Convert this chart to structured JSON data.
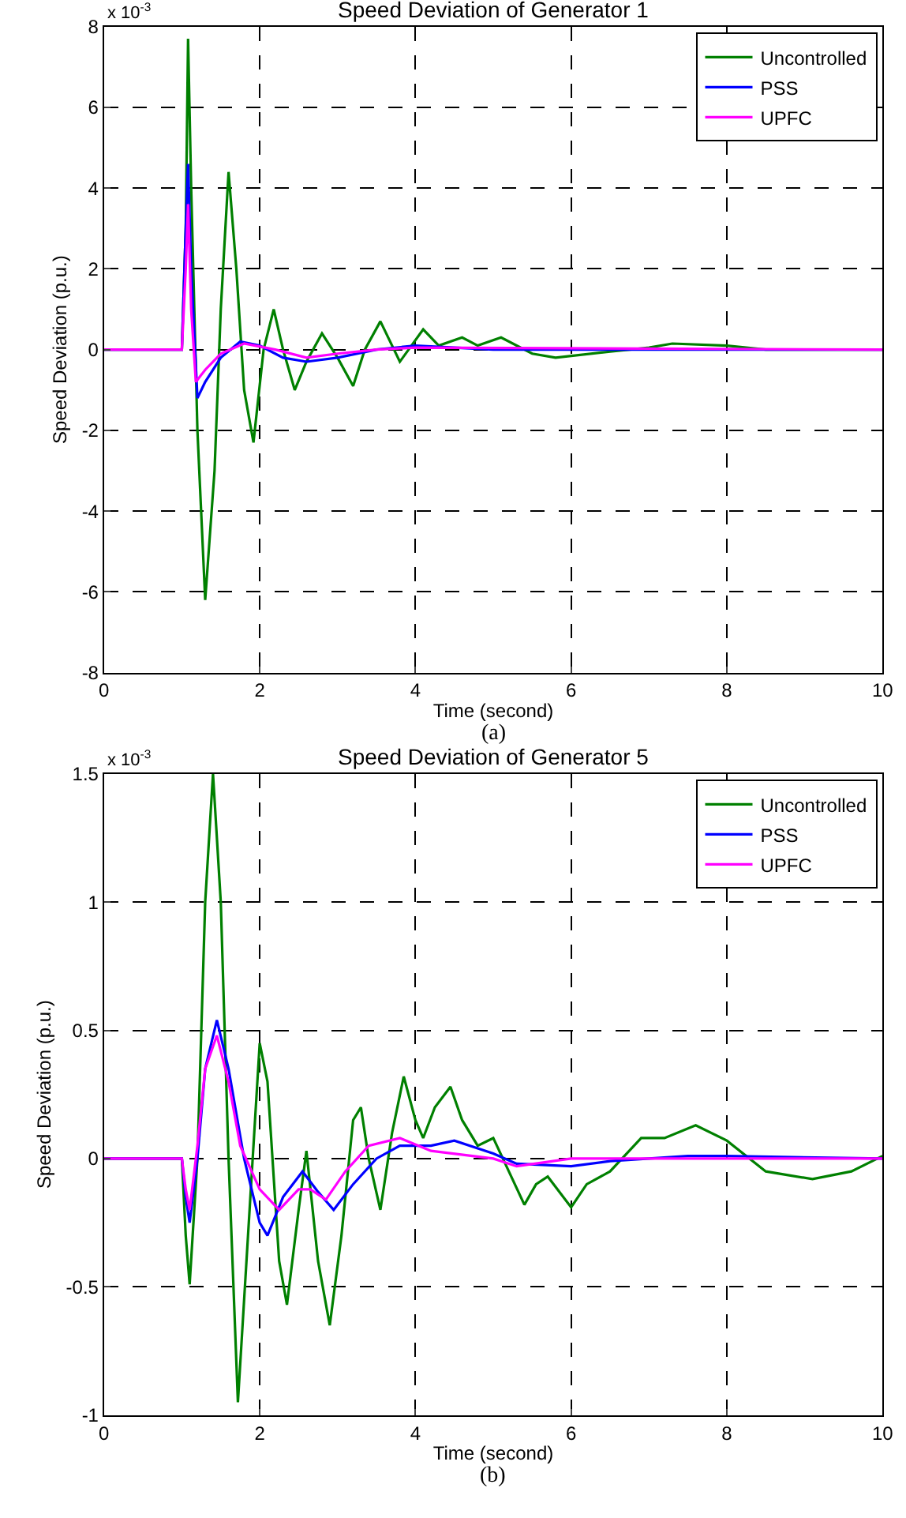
{
  "chart_data": [
    {
      "type": "line",
      "title": "Speed Deviation of Generator 1",
      "xlabel": "Time (second)",
      "ylabel": "Speed Deviation (p.u.)",
      "annotations": [
        "x 10$^{-3}$",
        "(a)"
      ],
      "xlim": [
        0,
        10
      ],
      "xticks": [
        0,
        2,
        4,
        6,
        8,
        10
      ],
      "ylim": [
        -8,
        8
      ],
      "yticks": [
        -8,
        -6,
        -4,
        -2,
        0,
        2,
        4,
        6,
        8
      ],
      "grid": true,
      "legend": "top right",
      "line_style": "solid",
      "marker": "none",
      "series": [
        {
          "name": "Uncontrolled",
          "color": "#008000",
          "x": [
            0,
            1.0,
            1.05,
            1.08,
            1.12,
            1.2,
            1.3,
            1.42,
            1.5,
            1.6,
            1.7,
            1.8,
            1.92,
            2.05,
            2.18,
            2.3,
            2.45,
            2.6,
            2.8,
            3.0,
            3.2,
            3.35,
            3.55,
            3.8,
            4.1,
            4.3,
            4.6,
            4.8,
            5.1,
            5.5,
            5.8,
            6.5,
            7.0,
            7.3,
            8.0,
            8.5,
            10
          ],
          "values": [
            0,
            0,
            3,
            7.7,
            4,
            -2,
            -6.2,
            -3,
            1,
            4.4,
            2,
            -1,
            -2.3,
            0,
            1.0,
            0,
            -1.0,
            -0.3,
            0.4,
            -0.2,
            -0.9,
            0,
            0.7,
            -0.3,
            0.5,
            0.1,
            0.3,
            0.1,
            0.3,
            -0.1,
            -0.2,
            -0.05,
            0.05,
            0.15,
            0.1,
            0,
            0
          ]
        },
        {
          "name": "PSS",
          "color": "#0000ff",
          "x": [
            0,
            1.0,
            1.05,
            1.08,
            1.12,
            1.2,
            1.3,
            1.5,
            1.75,
            2.0,
            2.3,
            2.6,
            3.0,
            3.5,
            4.0,
            4.5,
            5.0,
            10
          ],
          "values": [
            0,
            0,
            3,
            4.6,
            2,
            -1.2,
            -0.8,
            -0.2,
            0.2,
            0.1,
            -0.2,
            -0.3,
            -0.2,
            0,
            0.1,
            0.05,
            0,
            0
          ]
        },
        {
          "name": "UPFC",
          "color": "#ff00ff",
          "x": [
            0,
            1.0,
            1.05,
            1.08,
            1.12,
            1.18,
            1.3,
            1.5,
            1.8,
            2.2,
            2.6,
            3.0,
            3.5,
            4.0,
            10
          ],
          "values": [
            0,
            0,
            2,
            3.6,
            1,
            -0.8,
            -0.5,
            -0.1,
            0.15,
            0,
            -0.2,
            -0.1,
            0,
            0.05,
            0
          ]
        }
      ]
    },
    {
      "type": "line",
      "title": "Speed Deviation of Generator 5",
      "xlabel": "Time (second)",
      "ylabel": "Speed Deviation (p.u.)",
      "annotations": [
        "x 10$^{-3}$",
        "(b)"
      ],
      "xlim": [
        0,
        10
      ],
      "xticks": [
        0,
        2,
        4,
        6,
        8,
        10
      ],
      "ylim": [
        -1,
        1.5
      ],
      "yticks": [
        -1,
        -0.5,
        0,
        0.5,
        1,
        1.5
      ],
      "grid": true,
      "legend": "top right",
      "line_style": "solid",
      "marker": "none",
      "series": [
        {
          "name": "Uncontrolled",
          "color": "#008000",
          "x": [
            0,
            1.0,
            1.05,
            1.1,
            1.2,
            1.3,
            1.4,
            1.5,
            1.6,
            1.72,
            1.85,
            2.0,
            2.1,
            2.25,
            2.35,
            2.5,
            2.6,
            2.75,
            2.9,
            3.05,
            3.2,
            3.3,
            3.4,
            3.55,
            3.7,
            3.85,
            4.0,
            4.1,
            4.25,
            4.45,
            4.6,
            4.8,
            5.0,
            5.2,
            5.4,
            5.55,
            5.7,
            6.0,
            6.2,
            6.5,
            6.9,
            7.2,
            7.6,
            8.0,
            8.5,
            9.1,
            9.6,
            10
          ],
          "values": [
            0,
            0,
            -0.3,
            -0.49,
            0,
            1.0,
            1.5,
            1.0,
            0,
            -0.95,
            -0.3,
            0.45,
            0.3,
            -0.4,
            -0.57,
            -0.2,
            0.03,
            -0.4,
            -0.65,
            -0.3,
            0.15,
            0.2,
            0,
            -0.2,
            0.1,
            0.32,
            0.15,
            0.08,
            0.2,
            0.28,
            0.15,
            0.05,
            0.08,
            -0.05,
            -0.18,
            -0.1,
            -0.07,
            -0.19,
            -0.1,
            -0.05,
            0.08,
            0.08,
            0.13,
            0.07,
            -0.05,
            -0.08,
            -0.05,
            0.01
          ]
        },
        {
          "name": "PSS",
          "color": "#0000ff",
          "x": [
            0,
            1.0,
            1.05,
            1.1,
            1.2,
            1.3,
            1.45,
            1.6,
            1.8,
            2.0,
            2.1,
            2.3,
            2.55,
            2.75,
            2.95,
            3.2,
            3.5,
            3.8,
            4.2,
            4.5,
            5.0,
            5.3,
            6.0,
            6.5,
            7.5,
            8.0,
            10
          ],
          "values": [
            0,
            0,
            -0.15,
            -0.25,
            0,
            0.35,
            0.54,
            0.35,
            0,
            -0.25,
            -0.3,
            -0.15,
            -0.05,
            -0.13,
            -0.2,
            -0.1,
            0,
            0.05,
            0.05,
            0.07,
            0.02,
            -0.02,
            -0.03,
            -0.01,
            0.01,
            0.01,
            0
          ]
        },
        {
          "name": "UPFC",
          "color": "#ff00ff",
          "x": [
            0,
            1.0,
            1.05,
            1.1,
            1.2,
            1.3,
            1.45,
            1.6,
            1.75,
            2.0,
            2.25,
            2.5,
            2.65,
            2.85,
            3.1,
            3.4,
            3.8,
            4.2,
            5.0,
            5.3,
            6.0,
            10
          ],
          "values": [
            0,
            0,
            -0.12,
            -0.2,
            0.05,
            0.35,
            0.48,
            0.3,
            0.05,
            -0.12,
            -0.2,
            -0.12,
            -0.12,
            -0.16,
            -0.05,
            0.05,
            0.08,
            0.03,
            0,
            -0.03,
            0,
            0
          ]
        }
      ]
    }
  ]
}
